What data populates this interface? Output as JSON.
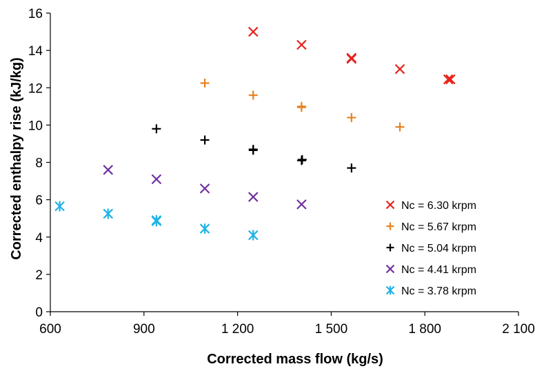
{
  "chart_data": {
    "type": "scatter",
    "title": "",
    "xlabel": "Corrected mass flow (kg/s)",
    "ylabel": "Corrected enthalpy rise (kJ/kg)",
    "xlim": [
      600,
      2100
    ],
    "ylim": [
      0,
      16
    ],
    "x_ticks": [
      600,
      900,
      1200,
      1500,
      1800,
      2100
    ],
    "x_tick_labels": [
      "600",
      "900",
      "1 200",
      "1 500",
      "1 800",
      "2 100"
    ],
    "y_ticks": [
      0,
      2,
      4,
      6,
      8,
      10,
      12,
      14,
      16
    ],
    "y_tick_labels": [
      "0",
      "2",
      "4",
      "6",
      "8",
      "10",
      "12",
      "14",
      "16"
    ],
    "grid": false,
    "legend_position": "bottom-right",
    "series": [
      {
        "name": "Nc = 6.30 krpm",
        "marker": "x",
        "color": "#e8221c",
        "points": [
          [
            1250,
            15.0
          ],
          [
            1405,
            14.3
          ],
          [
            1565,
            13.6
          ],
          [
            1565,
            13.55
          ],
          [
            1720,
            13.0
          ],
          [
            1875,
            12.45
          ],
          [
            1882,
            12.45
          ]
        ]
      },
      {
        "name": "Nc = 5.67 krpm",
        "marker": "plus",
        "color": "#e8821e",
        "points": [
          [
            1095,
            12.25
          ],
          [
            1250,
            11.6
          ],
          [
            1405,
            11.0
          ],
          [
            1405,
            10.95
          ],
          [
            1565,
            10.4
          ],
          [
            1720,
            9.9
          ]
        ]
      },
      {
        "name": "Nc = 5.04 krpm",
        "marker": "plus",
        "color": "#000000",
        "points": [
          [
            940,
            9.8
          ],
          [
            1095,
            9.2
          ],
          [
            1250,
            8.65
          ],
          [
            1250,
            8.7
          ],
          [
            1405,
            8.1
          ],
          [
            1407,
            8.15
          ],
          [
            1565,
            7.7
          ]
        ]
      },
      {
        "name": "Nc = 4.41 krpm",
        "marker": "x",
        "color": "#7030a0",
        "points": [
          [
            785,
            7.6
          ],
          [
            940,
            7.1
          ],
          [
            1095,
            6.6
          ],
          [
            1250,
            6.15
          ],
          [
            1405,
            5.75
          ]
        ]
      },
      {
        "name": "Nc = 3.78 krpm",
        "marker": "asterisk",
        "color": "#1fb2e6",
        "points": [
          [
            630,
            5.65
          ],
          [
            785,
            5.25
          ],
          [
            940,
            4.85
          ],
          [
            940,
            4.9
          ],
          [
            1095,
            4.45
          ],
          [
            1250,
            4.1
          ]
        ]
      }
    ]
  }
}
